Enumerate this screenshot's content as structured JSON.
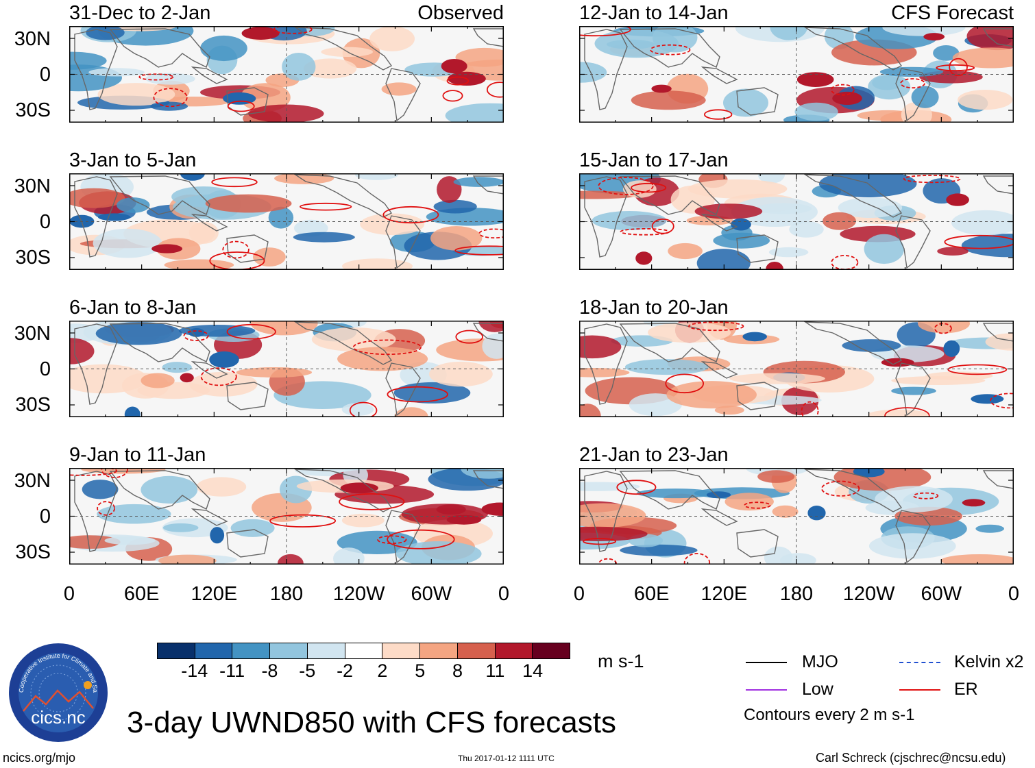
{
  "panels": [
    {
      "title": "31-Dec to 2-Jan",
      "tag": "Observed"
    },
    {
      "title": "3-Jan to 5-Jan",
      "tag": ""
    },
    {
      "title": "6-Jan to 8-Jan",
      "tag": ""
    },
    {
      "title": "9-Jan to 11-Jan",
      "tag": ""
    },
    {
      "title": "12-Jan to 14-Jan",
      "tag": "CFS Forecast"
    },
    {
      "title": "15-Jan to 17-Jan",
      "tag": ""
    },
    {
      "title": "18-Jan to 20-Jan",
      "tag": ""
    },
    {
      "title": "21-Jan to 23-Jan",
      "tag": ""
    }
  ],
  "lat_labels": [
    "30N",
    "0",
    "30S"
  ],
  "lon_labels": [
    "0",
    "60E",
    "120E",
    "180",
    "120W",
    "60W",
    "0"
  ],
  "colorbar": {
    "colors": [
      "#08306b",
      "#2166ac",
      "#4393c3",
      "#92c5de",
      "#d1e5f0",
      "#ffffff",
      "#fddbc7",
      "#f4a582",
      "#d6604d",
      "#b2182b",
      "#67001f"
    ],
    "ticks": [
      "-14",
      "-11",
      "-8",
      "-5",
      "-2",
      "2",
      "5",
      "8",
      "11",
      "14"
    ],
    "units": "m s-1"
  },
  "legend": {
    "items": [
      {
        "label": "MJO",
        "color": "#000000"
      },
      {
        "label": "Kelvin x2",
        "color": "#2050d0"
      },
      {
        "label": "Low",
        "color": "#a030e0"
      },
      {
        "label": "ER",
        "color": "#e01010"
      }
    ],
    "contours_note": "Contours every 2 m s-1"
  },
  "logo": {
    "text": "cics.nc",
    "ring_text": "Cooperative Institute for Climate and Satellites"
  },
  "main_title": "3-day UWND850 with CFS forecasts",
  "footer": {
    "left": "ncics.org/mjo",
    "center": "Thu 2017-01-12 1111 UTC",
    "right": "Carl Schreck (cjschrec@ncsu.edu)"
  }
}
